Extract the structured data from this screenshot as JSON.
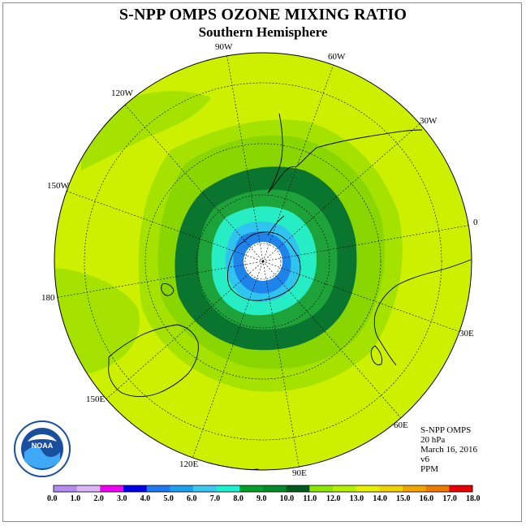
{
  "title": "S-NPP OMPS OZONE MIXING RATIO",
  "subtitle": "Southern Hemisphere",
  "lon_labels": {
    "w90": "90W",
    "w60": "60W",
    "w30": "30W",
    "e0": "0",
    "e30": "30E",
    "e60": "60E",
    "e90": "90E",
    "e120": "120E",
    "e150": "150E",
    "d180": "180",
    "w150": "150W",
    "w120": "120W"
  },
  "info": {
    "instrument": "S-NPP OMPS",
    "level": "20 hPa",
    "date": "March 16, 2016",
    "version": "v6",
    "units": "PPM"
  },
  "colorbar": {
    "labels": [
      "0.0",
      "1.0",
      "2.0",
      "3.0",
      "4.0",
      "5.0",
      "6.0",
      "7.0",
      "8.0",
      "9.0",
      "10.0",
      "11.0",
      "12.0",
      "13.0",
      "14.0",
      "15.0",
      "16.0",
      "17.0",
      "18.0"
    ],
    "colors": [
      "#b58cf0",
      "#dcb4f8",
      "#f000f0",
      "#0000e6",
      "#1e78f0",
      "#1ea0f0",
      "#3cc8f0",
      "#1ef0d2",
      "#00a02d",
      "#008c28",
      "#005a1e",
      "#8ce600",
      "#b4f000",
      "#e6f000",
      "#f0d200",
      "#f0a500",
      "#f07800",
      "#e60000",
      "#8c5032"
    ]
  },
  "map_colors": {
    "outer": "#ccf000",
    "lvl_11": "#a6e200",
    "lvl_10": "#8ad600",
    "lvl_9": "#46a830",
    "lvl_8": "#09752f",
    "lvl_7": "#1ea33a",
    "lvl_6": "#27edc4",
    "lvl_5": "#2fc3f0",
    "lvl_4": "#1e84ea",
    "lvl_3": "#1f8ef0",
    "pole": "#ffffff",
    "purple_patch": "#a98cf0"
  }
}
